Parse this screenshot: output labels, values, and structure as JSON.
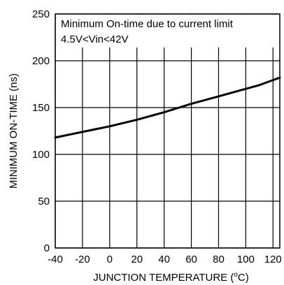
{
  "chart_data": {
    "type": "line",
    "xlabel": "JUNCTION TEMPERATURE (",
    "xlabel_sup": "o",
    "xlabel_suffix": "C)",
    "ylabel": "MINIMUM ON-TIME (ns)",
    "annotations": [
      "Minimum On-time due to current limit",
      "4.5V<Vin<42V"
    ],
    "xlim": [
      -40,
      125
    ],
    "ylim": [
      0,
      250
    ],
    "x_ticks": [
      -40,
      -20,
      0,
      20,
      40,
      60,
      80,
      100,
      120
    ],
    "x_tick_labels": [
      "-40",
      "-20",
      "0",
      "20",
      "40",
      "60",
      "80",
      "100",
      "120"
    ],
    "y_ticks": [
      0,
      50,
      100,
      150,
      200,
      250
    ],
    "y_tick_labels": [
      "0",
      "50",
      "100",
      "150",
      "200",
      "250"
    ],
    "grid": true,
    "series": [
      {
        "x": [
          -40,
          -20,
          0,
          20,
          40,
          60,
          80,
          100,
          110,
          125
        ],
        "y": [
          118,
          124,
          130,
          137,
          145,
          154,
          162,
          170,
          174,
          182
        ]
      }
    ]
  }
}
